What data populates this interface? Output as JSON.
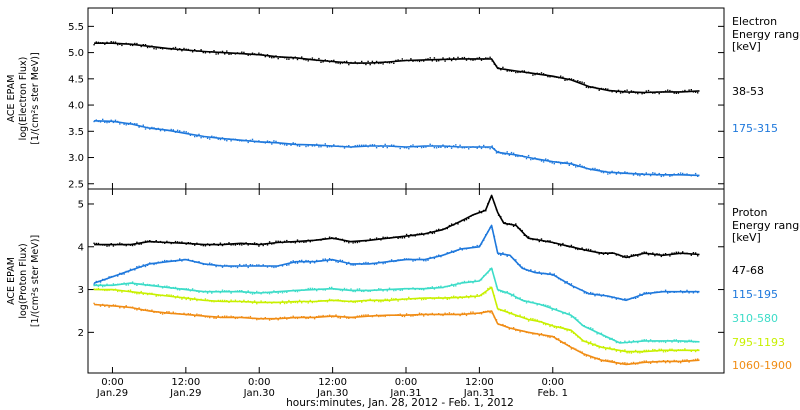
{
  "chart_data": [
    {
      "type": "scatter",
      "panel": "electron",
      "ylabel_lines": [
        "ACE EPAM",
        "log(Electron Flux)",
        "[1/(cm²s ster MeV)]"
      ],
      "legend_title": [
        "Electron",
        "Energy ranges",
        "[keV]"
      ],
      "ylim": [
        2.4,
        5.85
      ],
      "yticks": [
        "2.5",
        "3.0",
        "3.5",
        "4.0",
        "4.5",
        "5.0",
        "5.5"
      ],
      "series": [
        {
          "name": "38-53",
          "color": "#000000",
          "points": [
            [
              -3,
              5.18
            ],
            [
              0,
              5.18
            ],
            [
              3,
              5.16
            ],
            [
              6,
              5.12
            ],
            [
              9,
              5.08
            ],
            [
              12,
              5.05
            ],
            [
              15,
              5.02
            ],
            [
              18,
              5.0
            ],
            [
              21,
              4.98
            ],
            [
              24,
              4.96
            ],
            [
              27,
              4.92
            ],
            [
              30,
              4.9
            ],
            [
              33,
              4.86
            ],
            [
              36,
              4.83
            ],
            [
              39,
              4.8
            ],
            [
              42,
              4.8
            ],
            [
              45,
              4.82
            ],
            [
              48,
              4.85
            ],
            [
              51,
              4.86
            ],
            [
              54,
              4.87
            ],
            [
              57,
              4.88
            ],
            [
              60,
              4.88
            ],
            [
              62,
              4.88
            ],
            [
              63,
              4.7
            ],
            [
              66,
              4.65
            ],
            [
              69,
              4.6
            ],
            [
              72,
              4.55
            ],
            [
              75,
              4.48
            ],
            [
              78,
              4.35
            ],
            [
              81,
              4.28
            ],
            [
              84,
              4.25
            ],
            [
              87,
              4.24
            ],
            [
              90,
              4.25
            ],
            [
              93,
              4.25
            ],
            [
              96,
              4.27
            ]
          ]
        },
        {
          "name": "175-315",
          "color": "#1e78dc",
          "points": [
            [
              -3,
              3.7
            ],
            [
              0,
              3.69
            ],
            [
              3,
              3.64
            ],
            [
              6,
              3.56
            ],
            [
              9,
              3.52
            ],
            [
              12,
              3.46
            ],
            [
              15,
              3.4
            ],
            [
              18,
              3.36
            ],
            [
              21,
              3.33
            ],
            [
              24,
              3.3
            ],
            [
              27,
              3.28
            ],
            [
              30,
              3.25
            ],
            [
              33,
              3.24
            ],
            [
              36,
              3.22
            ],
            [
              39,
              3.2
            ],
            [
              42,
              3.22
            ],
            [
              45,
              3.22
            ],
            [
              48,
              3.2
            ],
            [
              51,
              3.22
            ],
            [
              54,
              3.22
            ],
            [
              57,
              3.2
            ],
            [
              60,
              3.2
            ],
            [
              62,
              3.2
            ],
            [
              63,
              3.1
            ],
            [
              66,
              3.05
            ],
            [
              69,
              2.98
            ],
            [
              72,
              2.92
            ],
            [
              75,
              2.88
            ],
            [
              78,
              2.78
            ],
            [
              81,
              2.72
            ],
            [
              84,
              2.7
            ],
            [
              87,
              2.68
            ],
            [
              90,
              2.67
            ],
            [
              93,
              2.67
            ],
            [
              96,
              2.66
            ]
          ]
        }
      ]
    },
    {
      "type": "scatter",
      "panel": "proton",
      "ylabel_lines": [
        "ACE EPAM",
        "log(Proton Flux)",
        "[1/(cm²s ster MeV)]"
      ],
      "legend_title": [
        "Proton",
        "Energy ranges",
        "[keV]"
      ],
      "ylim": [
        1.05,
        5.35
      ],
      "yticks": [
        "2",
        "3",
        "4",
        "5"
      ],
      "series": [
        {
          "name": "47-68",
          "color": "#000000",
          "points": [
            [
              -3,
              4.05
            ],
            [
              0,
              4.05
            ],
            [
              3,
              4.05
            ],
            [
              6,
              4.12
            ],
            [
              9,
              4.1
            ],
            [
              12,
              4.08
            ],
            [
              15,
              4.05
            ],
            [
              18,
              4.05
            ],
            [
              21,
              4.08
            ],
            [
              24,
              4.05
            ],
            [
              27,
              4.1
            ],
            [
              30,
              4.12
            ],
            [
              33,
              4.15
            ],
            [
              36,
              4.2
            ],
            [
              39,
              4.12
            ],
            [
              42,
              4.15
            ],
            [
              45,
              4.2
            ],
            [
              48,
              4.25
            ],
            [
              51,
              4.3
            ],
            [
              54,
              4.4
            ],
            [
              57,
              4.6
            ],
            [
              59,
              4.75
            ],
            [
              61,
              4.85
            ],
            [
              62,
              5.2
            ],
            [
              63,
              4.8
            ],
            [
              64,
              4.55
            ],
            [
              66,
              4.5
            ],
            [
              68,
              4.2
            ],
            [
              70,
              4.15
            ],
            [
              72,
              4.1
            ],
            [
              75,
              4.0
            ],
            [
              78,
              3.9
            ],
            [
              80,
              3.85
            ],
            [
              82,
              3.85
            ],
            [
              84,
              3.75
            ],
            [
              87,
              3.85
            ],
            [
              90,
              3.8
            ],
            [
              93,
              3.85
            ],
            [
              96,
              3.82
            ]
          ]
        },
        {
          "name": "115-195",
          "color": "#1e78dc",
          "points": [
            [
              -3,
              3.15
            ],
            [
              0,
              3.3
            ],
            [
              3,
              3.45
            ],
            [
              6,
              3.6
            ],
            [
              9,
              3.65
            ],
            [
              12,
              3.7
            ],
            [
              15,
              3.6
            ],
            [
              18,
              3.55
            ],
            [
              21,
              3.55
            ],
            [
              24,
              3.55
            ],
            [
              27,
              3.55
            ],
            [
              30,
              3.65
            ],
            [
              33,
              3.65
            ],
            [
              36,
              3.7
            ],
            [
              39,
              3.6
            ],
            [
              42,
              3.6
            ],
            [
              45,
              3.65
            ],
            [
              48,
              3.7
            ],
            [
              51,
              3.7
            ],
            [
              54,
              3.8
            ],
            [
              57,
              3.95
            ],
            [
              60,
              4.0
            ],
            [
              62,
              4.5
            ],
            [
              63,
              3.85
            ],
            [
              65,
              3.8
            ],
            [
              67,
              3.5
            ],
            [
              69,
              3.4
            ],
            [
              72,
              3.35
            ],
            [
              75,
              3.1
            ],
            [
              78,
              2.9
            ],
            [
              81,
              2.85
            ],
            [
              84,
              2.75
            ],
            [
              87,
              2.9
            ],
            [
              90,
              2.95
            ],
            [
              93,
              2.95
            ],
            [
              96,
              2.95
            ]
          ]
        },
        {
          "name": "310-580",
          "color": "#3cdcc8",
          "points": [
            [
              -3,
              3.1
            ],
            [
              0,
              3.1
            ],
            [
              3,
              3.15
            ],
            [
              6,
              3.1
            ],
            [
              9,
              3.05
            ],
            [
              12,
              3.0
            ],
            [
              15,
              2.95
            ],
            [
              18,
              2.95
            ],
            [
              21,
              2.95
            ],
            [
              24,
              2.92
            ],
            [
              27,
              2.95
            ],
            [
              30,
              2.98
            ],
            [
              33,
              3.0
            ],
            [
              36,
              3.02
            ],
            [
              39,
              2.98
            ],
            [
              42,
              2.98
            ],
            [
              45,
              3.0
            ],
            [
              48,
              3.02
            ],
            [
              51,
              3.02
            ],
            [
              54,
              3.05
            ],
            [
              57,
              3.15
            ],
            [
              60,
              3.2
            ],
            [
              62,
              3.5
            ],
            [
              63,
              3.0
            ],
            [
              65,
              2.9
            ],
            [
              67,
              2.75
            ],
            [
              70,
              2.65
            ],
            [
              72,
              2.55
            ],
            [
              75,
              2.4
            ],
            [
              77,
              2.15
            ],
            [
              80,
              1.95
            ],
            [
              83,
              1.75
            ],
            [
              87,
              1.8
            ],
            [
              90,
              1.8
            ],
            [
              93,
              1.8
            ],
            [
              96,
              1.78
            ]
          ]
        },
        {
          "name": "795-1193",
          "color": "#c8f000",
          "points": [
            [
              -3,
              3.0
            ],
            [
              0,
              3.0
            ],
            [
              3,
              2.95
            ],
            [
              6,
              2.9
            ],
            [
              9,
              2.85
            ],
            [
              12,
              2.8
            ],
            [
              15,
              2.75
            ],
            [
              18,
              2.72
            ],
            [
              21,
              2.72
            ],
            [
              24,
              2.7
            ],
            [
              27,
              2.7
            ],
            [
              30,
              2.72
            ],
            [
              33,
              2.72
            ],
            [
              36,
              2.75
            ],
            [
              39,
              2.72
            ],
            [
              42,
              2.75
            ],
            [
              45,
              2.75
            ],
            [
              48,
              2.78
            ],
            [
              51,
              2.8
            ],
            [
              54,
              2.8
            ],
            [
              57,
              2.82
            ],
            [
              60,
              2.85
            ],
            [
              62,
              3.05
            ],
            [
              63,
              2.55
            ],
            [
              65,
              2.45
            ],
            [
              68,
              2.3
            ],
            [
              70,
              2.25
            ],
            [
              72,
              2.15
            ],
            [
              75,
              2.05
            ],
            [
              77,
              1.8
            ],
            [
              80,
              1.65
            ],
            [
              84,
              1.55
            ],
            [
              87,
              1.55
            ],
            [
              90,
              1.58
            ],
            [
              93,
              1.58
            ],
            [
              96,
              1.58
            ]
          ]
        },
        {
          "name": "1060-1900",
          "color": "#f08c14",
          "points": [
            [
              -3,
              2.65
            ],
            [
              0,
              2.62
            ],
            [
              3,
              2.58
            ],
            [
              6,
              2.5
            ],
            [
              9,
              2.45
            ],
            [
              12,
              2.42
            ],
            [
              15,
              2.38
            ],
            [
              18,
              2.35
            ],
            [
              21,
              2.35
            ],
            [
              24,
              2.32
            ],
            [
              27,
              2.32
            ],
            [
              30,
              2.35
            ],
            [
              33,
              2.35
            ],
            [
              36,
              2.38
            ],
            [
              39,
              2.35
            ],
            [
              42,
              2.38
            ],
            [
              45,
              2.4
            ],
            [
              48,
              2.4
            ],
            [
              51,
              2.42
            ],
            [
              54,
              2.42
            ],
            [
              57,
              2.42
            ],
            [
              60,
              2.45
            ],
            [
              62,
              2.5
            ],
            [
              63,
              2.2
            ],
            [
              65,
              2.1
            ],
            [
              68,
              2.0
            ],
            [
              70,
              1.95
            ],
            [
              72,
              1.9
            ],
            [
              75,
              1.65
            ],
            [
              77,
              1.5
            ],
            [
              80,
              1.35
            ],
            [
              84,
              1.25
            ],
            [
              87,
              1.3
            ],
            [
              90,
              1.32
            ],
            [
              93,
              1.32
            ],
            [
              96,
              1.35
            ]
          ]
        }
      ]
    }
  ],
  "x_axis": {
    "range_hours": [
      -4,
      100
    ],
    "ticks": [
      {
        "hour": 0,
        "time": "0:00",
        "date": "Jan.29"
      },
      {
        "hour": 12,
        "time": "12:00",
        "date": "Jan.29"
      },
      {
        "hour": 24,
        "time": "0:00",
        "date": "Jan.30"
      },
      {
        "hour": 36,
        "time": "12:00",
        "date": "Jan.30"
      },
      {
        "hour": 48,
        "time": "0:00",
        "date": "Jan.31"
      },
      {
        "hour": 60,
        "time": "12:00",
        "date": "Jan.31"
      },
      {
        "hour": 72,
        "time": "0:00",
        "date": "Feb. 1"
      }
    ],
    "xlabel": "hours:minutes, Jan. 28, 2012 - Feb. 1, 2012"
  }
}
